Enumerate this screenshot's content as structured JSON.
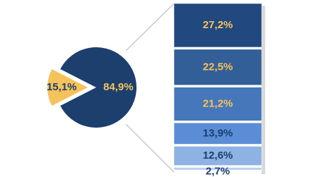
{
  "chart_data": {
    "type": "pie",
    "values": [
      15.1,
      84.9
    ],
    "value_labels": [
      "15,1%",
      "84,9%"
    ],
    "colors": [
      "#f6c25c",
      "#1c3f6e"
    ],
    "label_colors": [
      "#1c3f6e",
      "#f6c25c"
    ],
    "breakdown": {
      "values": [
        27.2,
        22.5,
        21.2,
        13.9,
        12.6,
        2.7
      ],
      "value_labels": [
        "27,2%",
        "22,5%",
        "21,2%",
        "13,9%",
        "12,6%",
        "2,7%"
      ],
      "colors": [
        "#22497f",
        "#335f98",
        "#4677bb",
        "#5a8dd6",
        "#8fb2e4",
        "#b7cff0"
      ],
      "label_colors": [
        "#f6c25c",
        "#f6c25c",
        "#f6c25c",
        "#1c3f6e",
        "#1c3f6e",
        "#1c3f6e"
      ]
    }
  }
}
